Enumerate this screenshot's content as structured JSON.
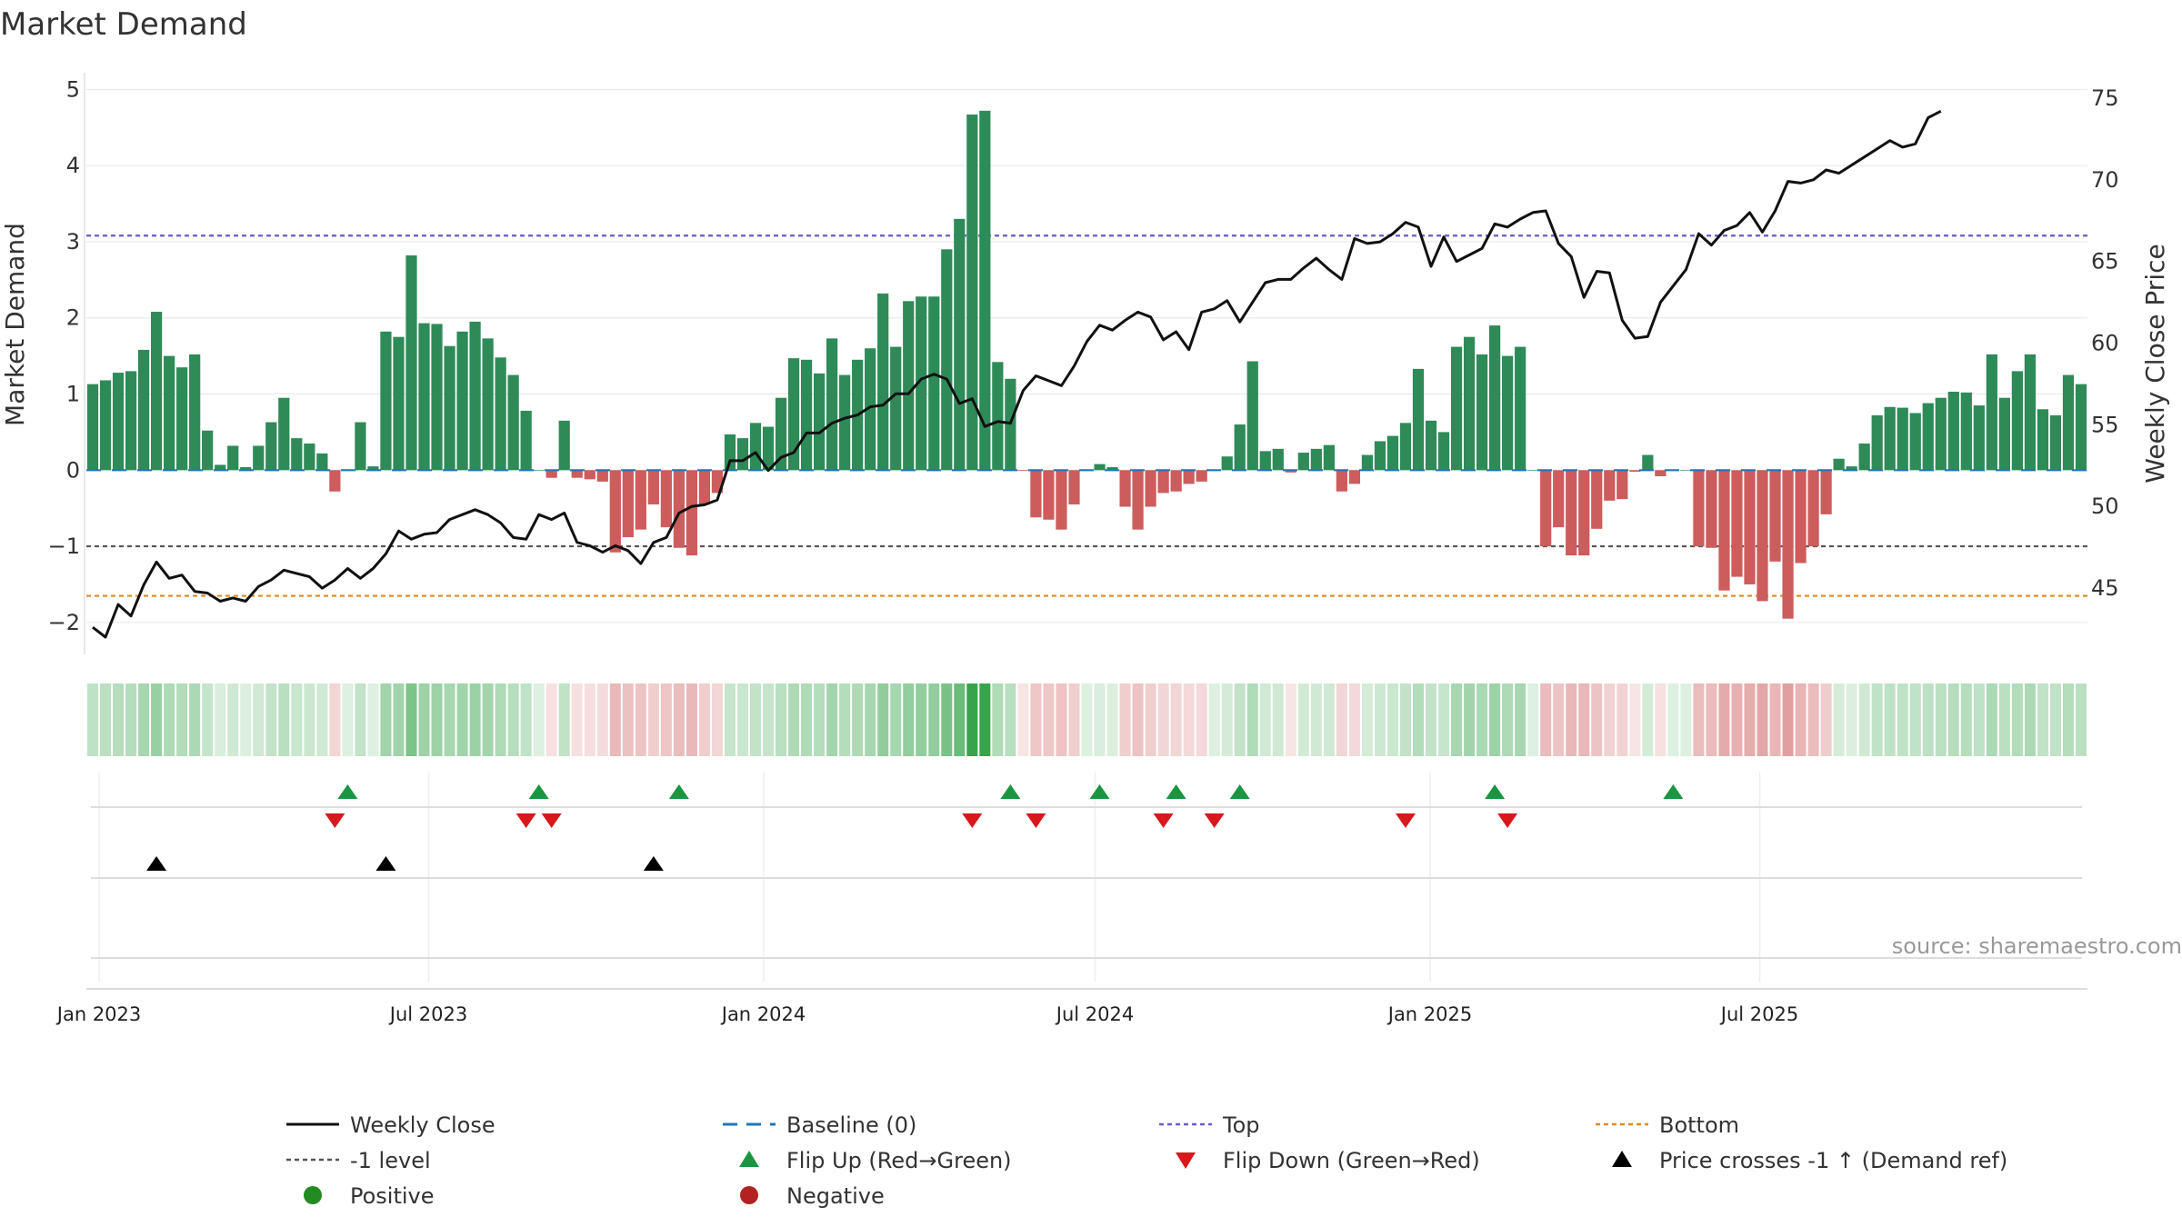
{
  "chart_data": {
    "type": "bar",
    "title": "Market Demand",
    "ylabel_left": "Market Demand",
    "ylabel_right": "Weekly Close Price",
    "ylim_left": [
      -2.3,
      5.1
    ],
    "ylim_right": [
      41.5,
      76
    ],
    "yticks_left": [
      "5",
      "4",
      "3",
      "2",
      "1",
      "0",
      "−1",
      "−2"
    ],
    "yticks_right": [
      "75",
      "70",
      "65",
      "60",
      "55",
      "50",
      "45"
    ],
    "x_start": "2022-12-25",
    "x_ticks": [
      "Jan 2023",
      "Jul 2023",
      "Jan 2024",
      "Jul 2024",
      "Jan 2025",
      "Jul 2025"
    ],
    "levels": {
      "top": 3.08,
      "minus_one": -1.0,
      "bottom": -1.65,
      "baseline": 0
    },
    "demand": [
      1.13,
      1.18,
      1.28,
      1.3,
      1.58,
      2.08,
      1.5,
      1.35,
      1.52,
      0.52,
      0.07,
      0.32,
      0.04,
      0.32,
      0.63,
      0.95,
      0.42,
      0.35,
      0.22,
      -0.28,
      0.01,
      0.63,
      0.05,
      1.82,
      1.75,
      2.82,
      1.93,
      1.92,
      1.63,
      1.82,
      1.95,
      1.73,
      1.48,
      1.25,
      0.78,
      0.0,
      -0.1,
      0.65,
      -0.1,
      -0.12,
      -0.15,
      -1.08,
      -0.88,
      -0.78,
      -0.45,
      -0.75,
      -1.02,
      -1.12,
      -0.45,
      -0.3,
      0.47,
      0.42,
      0.62,
      0.57,
      0.95,
      1.47,
      1.45,
      1.27,
      1.73,
      1.25,
      1.45,
      1.6,
      2.32,
      1.62,
      2.22,
      2.28,
      2.28,
      2.9,
      3.3,
      4.67,
      4.72,
      1.42,
      1.2,
      -0.01,
      -0.62,
      -0.65,
      -0.78,
      -0.45,
      0.0,
      0.08,
      0.04,
      -0.48,
      -0.78,
      -0.48,
      -0.3,
      -0.28,
      -0.18,
      -0.15,
      0.0,
      0.18,
      0.6,
      1.43,
      0.25,
      0.28,
      -0.03,
      0.23,
      0.28,
      0.33,
      -0.28,
      -0.18,
      0.2,
      0.38,
      0.45,
      0.62,
      1.33,
      0.65,
      0.5,
      1.62,
      1.75,
      1.52,
      1.9,
      1.5,
      1.62,
      0.0,
      -1.0,
      -0.75,
      -1.12,
      -1.12,
      -0.77,
      -0.4,
      -0.38,
      -0.02,
      0.2,
      -0.08,
      0.0,
      0.0,
      -1.0,
      -1.02,
      -1.58,
      -1.4,
      -1.5,
      -1.72,
      -1.2,
      -1.95,
      -1.22,
      -1.0,
      -0.58,
      0.15,
      0.05,
      0.35,
      0.72,
      0.83,
      0.82,
      0.75,
      0.88,
      0.95,
      1.03,
      1.02,
      0.85,
      1.52,
      0.95,
      1.3,
      1.52,
      0.8,
      0.72,
      1.25,
      1.13
    ],
    "close": [
      42.6,
      42.0,
      44.0,
      43.3,
      45.2,
      46.6,
      45.6,
      45.8,
      44.8,
      44.7,
      44.2,
      44.4,
      44.2,
      45.1,
      45.5,
      46.1,
      45.9,
      45.7,
      45.0,
      45.5,
      46.2,
      45.6,
      46.2,
      47.1,
      48.5,
      48.0,
      48.3,
      48.4,
      49.2,
      49.5,
      49.8,
      49.5,
      49.0,
      48.1,
      48.0,
      49.5,
      49.2,
      49.6,
      47.8,
      47.6,
      47.2,
      47.6,
      47.3,
      46.5,
      47.8,
      48.1,
      49.6,
      50.0,
      50.1,
      50.4,
      52.8,
      52.8,
      53.3,
      52.2,
      53.0,
      53.3,
      54.5,
      54.5,
      55.1,
      55.4,
      55.6,
      56.1,
      56.2,
      56.9,
      56.9,
      57.8,
      58.1,
      57.8,
      56.3,
      56.6,
      54.9,
      55.2,
      55.1,
      57.1,
      58.0,
      57.7,
      57.4,
      58.6,
      60.1,
      61.1,
      60.8,
      61.4,
      61.9,
      61.6,
      60.2,
      60.7,
      59.6,
      61.9,
      62.1,
      62.6,
      61.3,
      62.5,
      63.7,
      63.9,
      63.9,
      64.6,
      65.2,
      64.5,
      63.9,
      66.4,
      66.1,
      66.2,
      66.7,
      67.4,
      67.1,
      64.7,
      66.5,
      65.0,
      65.4,
      65.8,
      67.3,
      67.1,
      67.6,
      68.0,
      68.1,
      66.1,
      65.3,
      62.8,
      64.4,
      64.3,
      61.4,
      60.3,
      60.4,
      62.5,
      63.5,
      64.5,
      66.7,
      66.0,
      66.9,
      67.2,
      68.0,
      66.8,
      68.1,
      69.9,
      69.8,
      70.0,
      70.6,
      70.4,
      70.9,
      71.4,
      71.9,
      72.4,
      72.0,
      72.2,
      73.8,
      74.2
    ],
    "heat_levels": [
      0.22,
      0.24,
      0.26,
      0.27,
      0.34,
      0.42,
      0.31,
      0.28,
      0.32,
      0.18,
      0.07,
      0.13,
      0.06,
      0.13,
      0.19,
      0.25,
      0.16,
      0.15,
      0.12,
      0.16,
      0.05,
      0.19,
      0.05,
      0.38,
      0.37,
      0.58,
      0.4,
      0.4,
      0.34,
      0.38,
      0.41,
      0.36,
      0.31,
      0.26,
      0.2,
      0.05,
      0.08,
      0.2,
      0.08,
      0.09,
      0.1,
      0.35,
      0.3,
      0.27,
      0.2,
      0.26,
      0.33,
      0.35,
      0.2,
      0.16,
      0.17,
      0.16,
      0.19,
      0.18,
      0.25,
      0.31,
      0.31,
      0.27,
      0.36,
      0.27,
      0.31,
      0.34,
      0.47,
      0.34,
      0.45,
      0.46,
      0.46,
      0.59,
      0.67,
      0.95,
      0.96,
      0.3,
      0.25,
      0.05,
      0.25,
      0.25,
      0.28,
      0.2,
      0.05,
      0.07,
      0.06,
      0.2,
      0.28,
      0.2,
      0.16,
      0.16,
      0.13,
      0.12,
      0.05,
      0.1,
      0.19,
      0.3,
      0.11,
      0.12,
      0.06,
      0.11,
      0.12,
      0.13,
      0.16,
      0.13,
      0.1,
      0.14,
      0.15,
      0.19,
      0.28,
      0.19,
      0.17,
      0.34,
      0.37,
      0.32,
      0.4,
      0.31,
      0.34,
      0.05,
      0.33,
      0.27,
      0.36,
      0.36,
      0.27,
      0.18,
      0.17,
      0.06,
      0.1,
      0.08,
      0.05,
      0.05,
      0.33,
      0.33,
      0.45,
      0.41,
      0.43,
      0.48,
      0.36,
      0.53,
      0.37,
      0.33,
      0.22,
      0.09,
      0.06,
      0.13,
      0.2,
      0.22,
      0.22,
      0.2,
      0.23,
      0.24,
      0.26,
      0.26,
      0.22,
      0.32,
      0.24,
      0.28,
      0.32,
      0.21,
      0.2,
      0.27,
      0.24
    ],
    "flip_up_weeks": [
      20,
      35,
      46,
      72,
      79,
      85,
      90,
      110,
      124
    ],
    "flip_down_weeks": [
      19,
      34,
      36,
      69,
      74,
      84,
      88,
      103,
      111
    ],
    "price_cross_weeks": [
      5,
      23,
      44
    ],
    "colors": {
      "positive_bar": "#2e8b57",
      "negative_bar": "#cd5c5c",
      "close_line": "#111111",
      "baseline": "#1f77b4",
      "top": "#6a5acd",
      "minus_one": "#555555",
      "bottom": "#e08a1e",
      "flip_up": "#1a9641",
      "flip_down": "#d7191c",
      "cross": "#000000",
      "positive_dot": "#228b22",
      "negative_dot": "#b22222"
    },
    "legend": [
      {
        "label": "Weekly Close",
        "kind": "line-solid",
        "color": "#111111"
      },
      {
        "label": "Baseline (0)",
        "kind": "line-dash",
        "color": "#1f77b4"
      },
      {
        "label": "Top",
        "kind": "line-dot",
        "color": "#6a5acd"
      },
      {
        "label": "Bottom",
        "kind": "line-dot",
        "color": "#e08a1e"
      },
      {
        "label": "-1 level",
        "kind": "line-dot",
        "color": "#555555"
      },
      {
        "label": "Flip Up (Red→Green)",
        "kind": "tri-up",
        "color": "#1a9641"
      },
      {
        "label": "Flip Down (Green→Red)",
        "kind": "tri-down",
        "color": "#d7191c"
      },
      {
        "label": "Price crosses -1 ↑ (Demand ref)",
        "kind": "tri-up",
        "color": "#000000"
      },
      {
        "label": "Positive",
        "kind": "dot",
        "color": "#228b22"
      },
      {
        "label": "Negative",
        "kind": "dot",
        "color": "#b22222"
      }
    ]
  },
  "source_text": "source: sharemaestro.com"
}
